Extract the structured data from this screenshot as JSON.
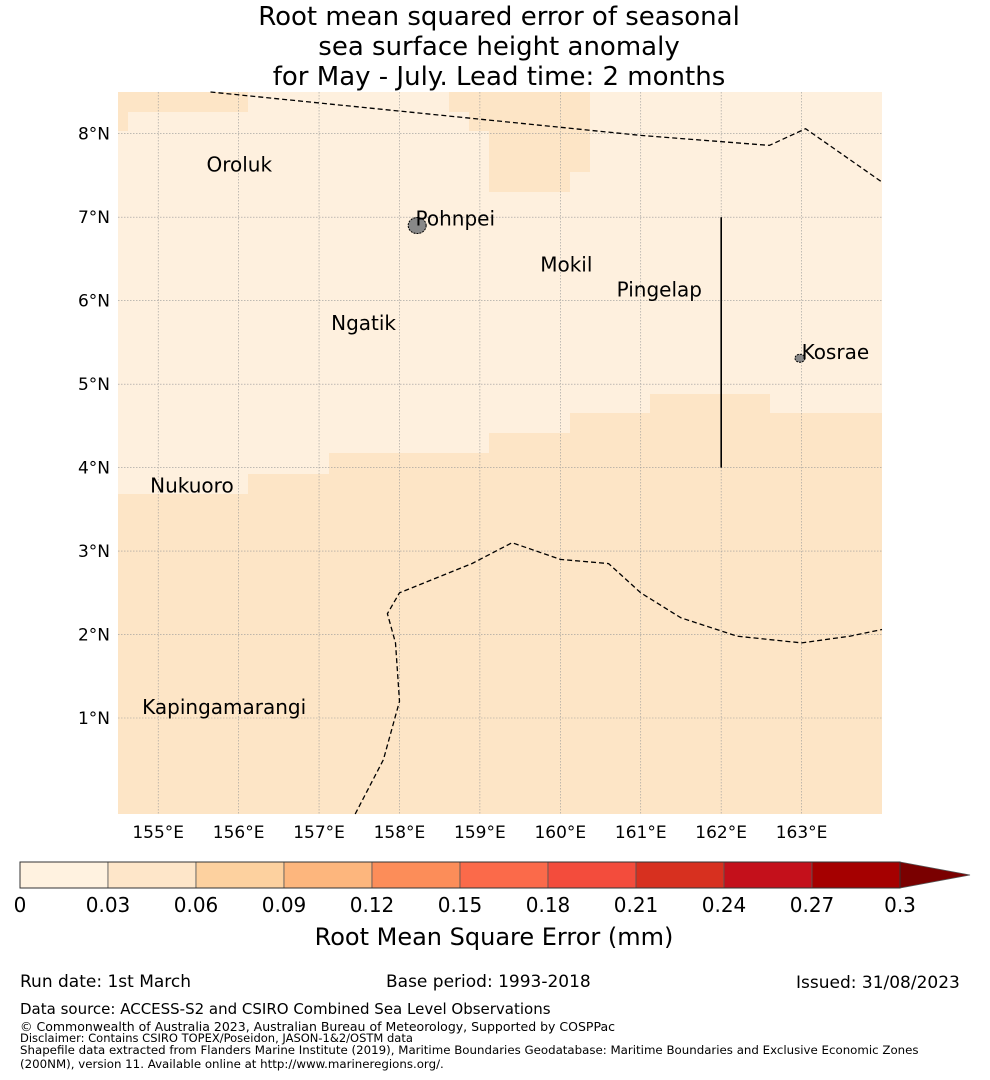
{
  "title": {
    "line1": "Root mean squared error of seasonal",
    "line2": "sea surface height anomaly",
    "line3": "for May - July. Lead time: 2 months"
  },
  "map": {
    "lon_range": [
      154.5,
      164.0
    ],
    "lat_range": [
      -0.15,
      8.5
    ],
    "lon_ticks": [
      155,
      156,
      157,
      158,
      159,
      160,
      161,
      162,
      163
    ],
    "lon_tick_labels": [
      "155°E",
      "156°E",
      "157°E",
      "158°E",
      "159°E",
      "160°E",
      "161°E",
      "162°E",
      "163°E"
    ],
    "lat_ticks": [
      1,
      2,
      3,
      4,
      5,
      6,
      7,
      8
    ],
    "lat_tick_labels": [
      "1°N",
      "2°N",
      "3°N",
      "4°N",
      "5°N",
      "6°N",
      "7°N",
      "8°N"
    ],
    "places": [
      {
        "name": "Oroluk",
        "lon": 155.6,
        "lat": 7.55
      },
      {
        "name": "Pohnpei",
        "lon": 158.2,
        "lat": 6.9
      },
      {
        "name": "Mokil",
        "lon": 159.75,
        "lat": 6.35
      },
      {
        "name": "Pingelap",
        "lon": 160.7,
        "lat": 6.05
      },
      {
        "name": "Ngatik",
        "lon": 157.15,
        "lat": 5.65
      },
      {
        "name": "Kosrae",
        "lon": 163.0,
        "lat": 5.3
      },
      {
        "name": "Nukuoro",
        "lon": 154.9,
        "lat": 3.7
      },
      {
        "name": "Kapingamarangi",
        "lon": 154.8,
        "lat": 1.05
      }
    ],
    "islands": [
      {
        "name": "Pohnpei",
        "lon": 158.22,
        "lat": 6.9
      },
      {
        "name": "Kosrae",
        "lon": 162.98,
        "lat": 5.31
      }
    ],
    "colors": {
      "band_0_003": "#fef0de",
      "band_003_006": "#fde5c6",
      "grid": "#999999",
      "eez_line": "#000000",
      "land": "#888888"
    },
    "high_region_note": "0.03-0.06 band covers south and parts of north",
    "eez_boundary_north": [
      [
        155.65,
        8.5
      ],
      [
        161.0,
        7.98
      ],
      [
        162.6,
        7.86
      ],
      [
        163.05,
        8.06
      ],
      [
        164.0,
        7.42
      ]
    ],
    "eez_boundary_south": [
      [
        157.45,
        -0.15
      ],
      [
        157.8,
        0.5
      ],
      [
        158.0,
        1.2
      ],
      [
        157.95,
        1.9
      ],
      [
        157.85,
        2.25
      ],
      [
        158.0,
        2.5
      ],
      [
        158.9,
        2.85
      ],
      [
        159.4,
        3.1
      ],
      [
        160.0,
        2.9
      ],
      [
        160.6,
        2.85
      ],
      [
        161.0,
        2.5
      ],
      [
        161.5,
        2.2
      ],
      [
        162.2,
        1.98
      ],
      [
        163.0,
        1.9
      ],
      [
        163.6,
        1.98
      ],
      [
        164.0,
        2.06
      ]
    ],
    "solid_line": [
      [
        162.0,
        7.0
      ],
      [
        162.0,
        4.0
      ]
    ]
  },
  "colorbar": {
    "ticks": [
      "0",
      "0.03",
      "0.06",
      "0.09",
      "0.12",
      "0.15",
      "0.18",
      "0.21",
      "0.24",
      "0.27",
      "0.3"
    ],
    "colors": [
      "#fff2e0",
      "#fee6c9",
      "#fdd19f",
      "#fdb67d",
      "#fc8d59",
      "#fb6a4a",
      "#f34c3c",
      "#d7301f",
      "#c4101b",
      "#a50000",
      "#7a0000"
    ],
    "label": "Root Mean Square Error (mm)"
  },
  "footer": {
    "run_date": "Run date: 1st March",
    "base_period": "Base period: 1993-2018",
    "issued": "Issued: 31/08/2023",
    "data_source": "Data source: ACCESS-S2 and CSIRO Combined Sea Level Observations",
    "copyright": "© Commonwealth of Australia 2023, Australian Bureau of Meteorology, Supported by COSPPac",
    "disclaimer": "Disclaimer: Contains CSIRO TOPEX/Poseidon, JASON-1&2/OSTM data",
    "shapefile_1": "Shapefile data extracted from Flanders Marine Institute (2019), Maritime Boundaries Geodatabase: Maritime Boundaries and Exclusive Economic Zones",
    "shapefile_2": "(200NM), version 11. Available online at http://www.marineregions.org/."
  }
}
